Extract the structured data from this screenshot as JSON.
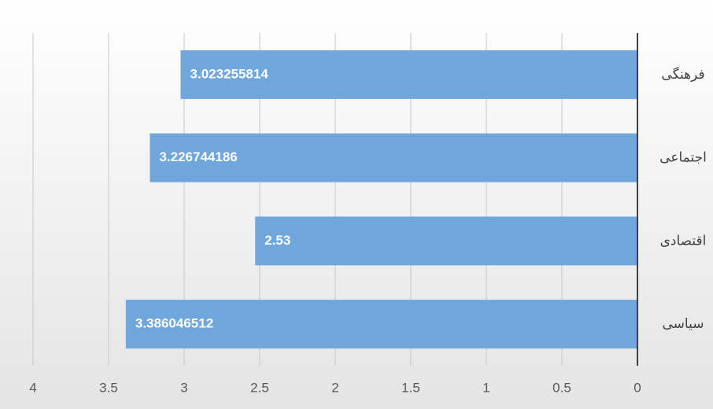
{
  "chart_data": {
    "type": "bar",
    "orientation": "horizontal",
    "x_reversed": true,
    "categories": [
      "فرهنگی",
      "اجتماعی",
      "اقتصادی",
      "سیاسی"
    ],
    "values": [
      3.023255814,
      3.226744186,
      2.53,
      3.386046512
    ],
    "color": "#6fa6dc",
    "xlim": [
      0,
      4
    ],
    "xticks": [
      0,
      0.5,
      1,
      1.5,
      2,
      2.5,
      3,
      3.5,
      4
    ],
    "grid": true
  }
}
